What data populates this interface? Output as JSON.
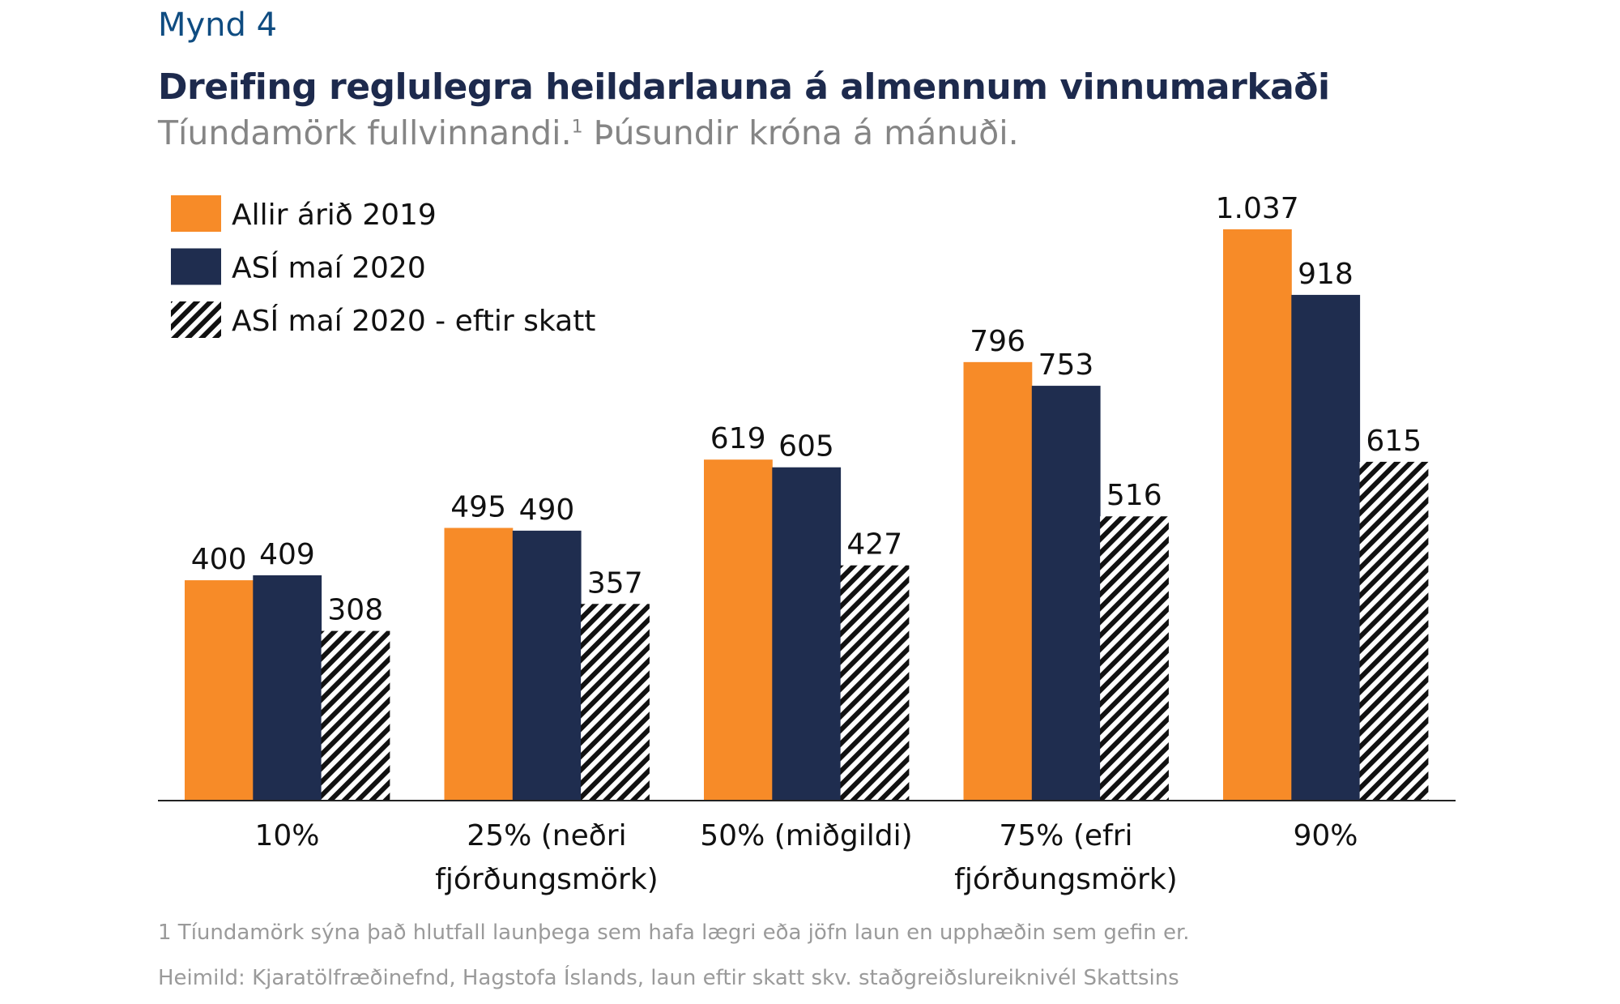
{
  "figure_label": "Mynd 4",
  "chart_data": {
    "type": "bar",
    "title": "Dreifing reglulegra heildarlauna á almennum vinnumarkaði",
    "subtitle": "Tíundamörk fullvinnandi.",
    "subtitle_sup": "1",
    "subtitle_rest": " Þúsundir króna á mánuði.",
    "categories": [
      [
        "10%"
      ],
      [
        "25% (neðri",
        "fjórðungsmörk)"
      ],
      [
        "50% (miðgildi)"
      ],
      [
        "75% (efri",
        "fjórðungsmörk)"
      ],
      [
        "90%"
      ]
    ],
    "series": [
      {
        "name": "Allir árið 2019",
        "color": "#f78b28",
        "pattern": "solid",
        "values": [
          400,
          495,
          619,
          796,
          1037
        ],
        "labels": [
          "400",
          "495",
          "619",
          "796",
          "1.037"
        ]
      },
      {
        "name": "ASÍ maí 2020",
        "color": "#1f2d4f",
        "pattern": "solid",
        "values": [
          409,
          490,
          605,
          753,
          918
        ],
        "labels": [
          "409",
          "490",
          "605",
          "753",
          "918"
        ]
      },
      {
        "name": "ASÍ maí 2020 - eftir skatt",
        "color": "#111111",
        "pattern": "diagonal-hatch",
        "values": [
          308,
          357,
          427,
          516,
          615
        ],
        "labels": [
          "308",
          "357",
          "427",
          "516",
          "615"
        ]
      }
    ],
    "ylim": [
      0,
      1037
    ],
    "grid": false,
    "legend_position": "top-left"
  },
  "footnotes": [
    "1 Tíundamörk sýna það hlutfall launþega sem hafa lægri eða jöfn laun en upphæðin sem gefin er.",
    "Heimild: Kjaratölfræðinefnd, Hagstofa Íslands, laun eftir skatt skv. staðgreiðslureiknivél Skattsins"
  ]
}
